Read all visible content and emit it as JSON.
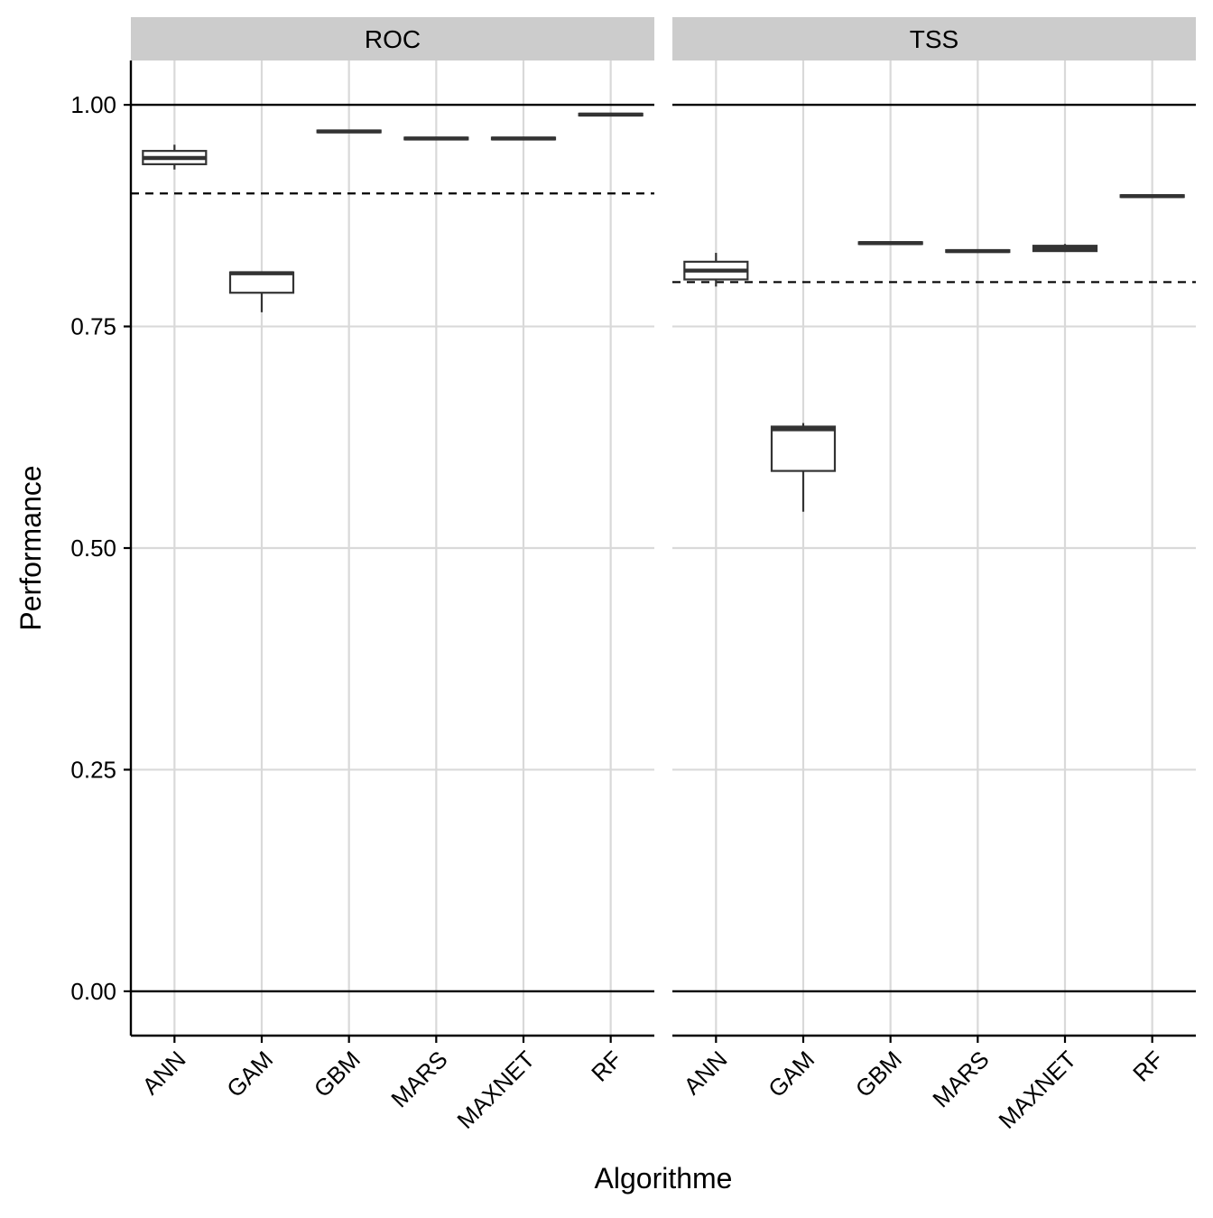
{
  "chart_data": {
    "type": "boxplot",
    "xlabel": "Algorithme",
    "ylabel": "Performance",
    "categories": [
      "ANN",
      "GAM",
      "GBM",
      "MARS",
      "MAXNET",
      "RF"
    ],
    "ylim": [
      -0.05,
      1.05
    ],
    "yticks": [
      0.0,
      0.25,
      0.5,
      0.75,
      1.0
    ],
    "ytick_labels": [
      "0.00",
      "0.25",
      "0.50",
      "0.75",
      "1.00"
    ],
    "grid": true,
    "colors": {
      "strip": "#cccccc",
      "box": "#333333",
      "grid": "#d9d9d9",
      "reference": "#000000"
    },
    "panels": [
      {
        "strip_label": "ROC",
        "threshold": 0.9,
        "boxes": [
          {
            "category": "ANN",
            "min": 0.927,
            "q1": 0.933,
            "median": 0.94,
            "q3": 0.948,
            "max": 0.955
          },
          {
            "category": "GAM",
            "min": 0.766,
            "q1": 0.788,
            "median": 0.81,
            "q3": 0.811,
            "max": 0.812
          },
          {
            "category": "GBM",
            "min": 0.968,
            "q1": 0.969,
            "median": 0.97,
            "q3": 0.971,
            "max": 0.972
          },
          {
            "category": "MARS",
            "min": 0.96,
            "q1": 0.961,
            "median": 0.962,
            "q3": 0.963,
            "max": 0.964
          },
          {
            "category": "MAXNET",
            "min": 0.96,
            "q1": 0.961,
            "median": 0.962,
            "q3": 0.963,
            "max": 0.964
          },
          {
            "category": "RF",
            "min": 0.987,
            "q1": 0.988,
            "median": 0.989,
            "q3": 0.99,
            "max": 0.991
          }
        ]
      },
      {
        "strip_label": "TSS",
        "threshold": 0.8,
        "boxes": [
          {
            "category": "ANN",
            "min": 0.795,
            "q1": 0.803,
            "median": 0.813,
            "q3": 0.823,
            "max": 0.833
          },
          {
            "category": "GAM",
            "min": 0.541,
            "q1": 0.587,
            "median": 0.634,
            "q3": 0.637,
            "max": 0.641
          },
          {
            "category": "GBM",
            "min": 0.842,
            "q1": 0.843,
            "median": 0.844,
            "q3": 0.845,
            "max": 0.846
          },
          {
            "category": "MARS",
            "min": 0.833,
            "q1": 0.834,
            "median": 0.835,
            "q3": 0.836,
            "max": 0.837
          },
          {
            "category": "MAXNET",
            "min": 0.834,
            "q1": 0.835,
            "median": 0.838,
            "q3": 0.841,
            "max": 0.843
          },
          {
            "category": "RF",
            "min": 0.895,
            "q1": 0.896,
            "median": 0.897,
            "q3": 0.898,
            "max": 0.899
          }
        ]
      }
    ]
  }
}
